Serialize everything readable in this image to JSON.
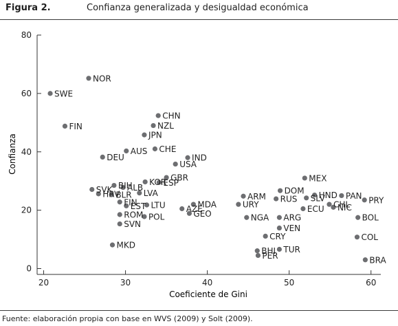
{
  "figure": {
    "label": "Figura 2.",
    "title": "Confianza generalizada y desigualdad económica",
    "source": "Fuente: elaboración propia con base en WVS (2009) y Solt (2009)."
  },
  "chart_data": {
    "type": "scatter",
    "title": "Confianza generalizada y desigualdad económica",
    "xlabel": "Coeficiente de Gini",
    "ylabel": "Confianza",
    "xlim": [
      19.2,
      61.2
    ],
    "ylim": [
      -2,
      80
    ],
    "xticks": [
      20,
      30,
      40,
      50,
      60
    ],
    "yticks": [
      0,
      20,
      40,
      60,
      80
    ],
    "grid": false,
    "marker_color": "#6d6e71",
    "points": [
      {
        "label": "NOR",
        "x": 25.5,
        "y": 65.2
      },
      {
        "label": "SWE",
        "x": 20.8,
        "y": 60.0
      },
      {
        "label": "FIN",
        "x": 22.6,
        "y": 48.8
      },
      {
        "label": "CHN",
        "x": 34.0,
        "y": 52.4
      },
      {
        "label": "NZL",
        "x": 33.4,
        "y": 49.0
      },
      {
        "label": "JPN",
        "x": 32.3,
        "y": 45.8
      },
      {
        "label": "CHE",
        "x": 33.6,
        "y": 41.0
      },
      {
        "label": "AUS",
        "x": 30.1,
        "y": 40.3
      },
      {
        "label": "DEU",
        "x": 27.2,
        "y": 38.2
      },
      {
        "label": "IND",
        "x": 37.6,
        "y": 38.0
      },
      {
        "label": "USA",
        "x": 36.1,
        "y": 35.8
      },
      {
        "label": "GBR",
        "x": 35.0,
        "y": 31.2
      },
      {
        "label": "ESP",
        "x": 34.1,
        "y": 29.5
      },
      {
        "label": "KOR",
        "x": 32.4,
        "y": 29.7
      },
      {
        "label": "LVA",
        "x": 31.7,
        "y": 25.9
      },
      {
        "label": "BIH",
        "x": 28.6,
        "y": 28.5
      },
      {
        "label": "ALB",
        "x": 29.7,
        "y": 27.8
      },
      {
        "label": "SVK",
        "x": 25.9,
        "y": 27.1
      },
      {
        "label": "HRV",
        "x": 26.7,
        "y": 25.6
      },
      {
        "label": "BLR",
        "x": 28.3,
        "y": 25.3
      },
      {
        "label": "FIN",
        "x": 29.3,
        "y": 22.8
      },
      {
        "label": "EST",
        "x": 30.1,
        "y": 21.5
      },
      {
        "label": "LTU",
        "x": 32.6,
        "y": 21.8
      },
      {
        "label": "AZE",
        "x": 36.9,
        "y": 20.5
      },
      {
        "label": "MDA",
        "x": 38.3,
        "y": 22.0
      },
      {
        "label": "GEO",
        "x": 37.8,
        "y": 18.9
      },
      {
        "label": "ROM",
        "x": 29.3,
        "y": 18.5
      },
      {
        "label": "POL",
        "x": 32.3,
        "y": 17.8
      },
      {
        "label": "SVN",
        "x": 29.3,
        "y": 15.3
      },
      {
        "label": "MKD",
        "x": 28.4,
        "y": 8.1
      },
      {
        "label": "MEX",
        "x": 51.9,
        "y": 31.0
      },
      {
        "label": "DOM",
        "x": 48.9,
        "y": 26.7
      },
      {
        "label": "ARM",
        "x": 44.4,
        "y": 24.8
      },
      {
        "label": "RUS",
        "x": 48.4,
        "y": 23.9
      },
      {
        "label": "SLV",
        "x": 52.1,
        "y": 24.2
      },
      {
        "label": "HND",
        "x": 53.1,
        "y": 25.2
      },
      {
        "label": "PAN",
        "x": 56.4,
        "y": 25.0
      },
      {
        "label": "PRY",
        "x": 59.2,
        "y": 23.5
      },
      {
        "label": "URY",
        "x": 43.8,
        "y": 22.0
      },
      {
        "label": "CHL",
        "x": 54.9,
        "y": 22.0
      },
      {
        "label": "NIC",
        "x": 55.4,
        "y": 21.0
      },
      {
        "label": "ECU",
        "x": 51.7,
        "y": 20.5
      },
      {
        "label": "NGA",
        "x": 44.8,
        "y": 17.5
      },
      {
        "label": "ARG",
        "x": 48.8,
        "y": 17.5
      },
      {
        "label": "BOL",
        "x": 58.4,
        "y": 17.5
      },
      {
        "label": "VEN",
        "x": 48.8,
        "y": 13.9
      },
      {
        "label": "CRY",
        "x": 47.1,
        "y": 11.1
      },
      {
        "label": "COL",
        "x": 58.3,
        "y": 10.8
      },
      {
        "label": "BHI",
        "x": 46.1,
        "y": 6.1
      },
      {
        "label": "TUR",
        "x": 48.8,
        "y": 6.6
      },
      {
        "label": "PER",
        "x": 46.2,
        "y": 4.5
      },
      {
        "label": "BRA",
        "x": 59.3,
        "y": 3.0
      }
    ]
  }
}
